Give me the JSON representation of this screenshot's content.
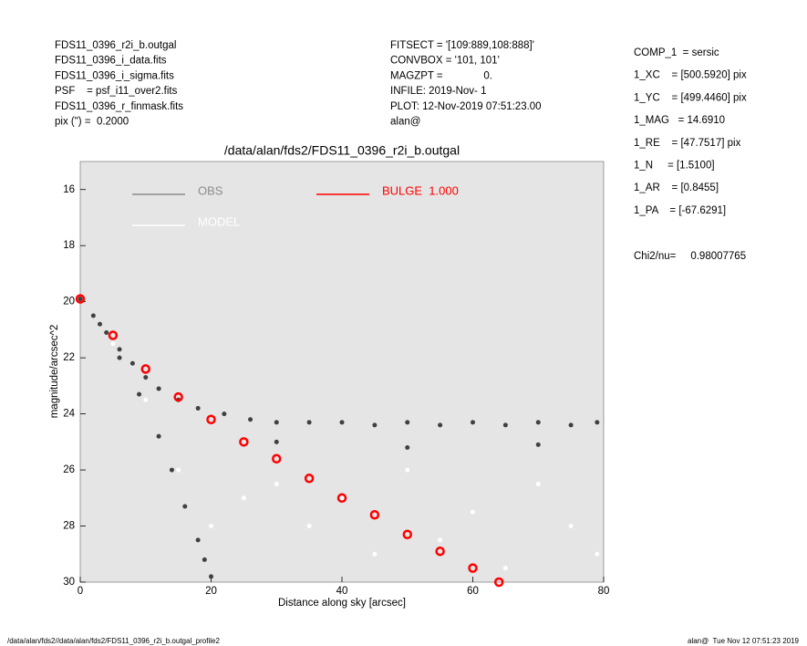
{
  "chart_data": {
    "type": "scatter",
    "title": "/data/alan/fds2/FDS11_0396_r2i_b.outgal",
    "x_label": "Distance along sky [arcsec]",
    "y_label": "magnitude/arcsec^2",
    "header_left": [
      "FDS11_0396_r2i_b.outgal",
      "FDS11_0396_i_data.fits",
      "FDS11_0396_i_sigma.fits",
      "PSF    = psf_i11_over2.fits",
      "FDS11_0396_r_finmask.fits",
      "pix (\") =  0.2000"
    ],
    "header_middle": [
      "FITSECT = '[109:889,108:888]'",
      "CONVBOX = '101, 101'",
      "MAGZPT =              0.",
      "INFILE: 2019-Nov- 1",
      "PLOT: 12-Nov-2019 07:51:23.00",
      "alan@"
    ],
    "parameters": [
      "COMP_1  = sersic",
      "1_XC    = [500.5920] pix",
      "1_YC    = [499.4460] pix",
      "1_MAG   = 14.6910",
      "1_RE    = [47.7517] pix",
      "1_N     = [1.5100]",
      "1_AR    = [0.8455]",
      "1_PA    = [-67.6291]"
    ],
    "chi2": "Chi2/nu=     0.98007765",
    "footer_left": "/data/alan/fds2//data/alan/fds2/FDS11_0396_r2i_b.outgal_profile2",
    "footer_right": "alan@  Tue Nov 12 07:51:23 2019",
    "xlim": [
      0,
      80
    ],
    "xticks": [
      0,
      20,
      40,
      60,
      80
    ],
    "ylim": [
      30,
      15
    ],
    "yticks": [
      16,
      18,
      20,
      22,
      24,
      26,
      28,
      30
    ],
    "background": "#e5e5e5",
    "series": [
      {
        "name": "OBS",
        "color": "#404040",
        "legend_color": "#8c8c8c",
        "x": [
          0,
          2,
          4,
          6,
          8,
          10,
          12,
          15,
          18,
          22,
          26,
          30,
          35,
          40,
          45,
          50,
          55,
          60,
          65,
          70,
          75,
          79,
          3,
          6,
          9,
          12,
          14,
          16,
          18,
          19,
          20,
          30,
          50,
          70
        ],
        "values": [
          19.9,
          20.5,
          21.1,
          21.7,
          22.2,
          22.7,
          23.1,
          23.5,
          23.8,
          24.0,
          24.2,
          24.3,
          24.3,
          24.3,
          24.4,
          24.3,
          24.4,
          24.3,
          24.4,
          24.3,
          24.4,
          24.3,
          20.8,
          22.0,
          23.3,
          24.8,
          26.0,
          27.3,
          28.5,
          29.2,
          29.8,
          25.0,
          25.2,
          25.1
        ]
      },
      {
        "name": "MODEL",
        "color": "#ffffff",
        "x": [
          5,
          10,
          15,
          20,
          25,
          30,
          35,
          40,
          45,
          50,
          55,
          60,
          65,
          70,
          75,
          79
        ],
        "values": [
          21.5,
          23.5,
          26,
          28,
          27,
          26.5,
          28,
          27,
          29,
          26,
          28.5,
          27.5,
          29.5,
          26.5,
          28,
          29
        ]
      },
      {
        "name": "BULGE  1.000",
        "color": "#ff0000",
        "x": [
          0,
          5,
          10,
          15,
          20,
          25,
          30,
          35,
          40,
          45,
          50,
          55,
          60,
          64
        ],
        "values": [
          19.9,
          21.2,
          22.4,
          23.4,
          24.2,
          25.0,
          25.6,
          26.3,
          27.0,
          27.6,
          28.3,
          28.9,
          29.5,
          30.0
        ]
      }
    ]
  }
}
